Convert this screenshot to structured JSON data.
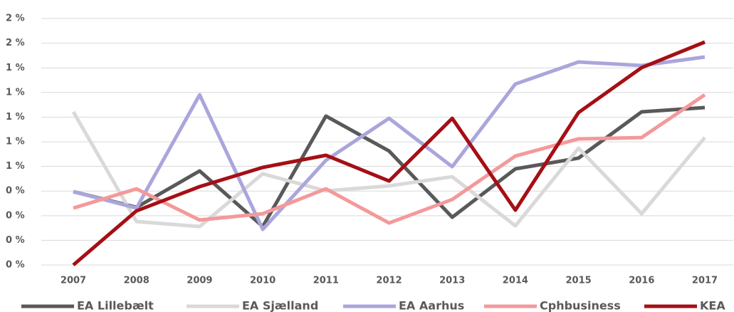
{
  "chart_data": {
    "type": "line",
    "categories": [
      "2007",
      "2008",
      "2009",
      "2010",
      "2011",
      "2012",
      "2013",
      "2014",
      "2015",
      "2016",
      "2017"
    ],
    "ylim": [
      0,
      1.667
    ],
    "yticks": [
      {
        "value": 0,
        "label": "0 %"
      },
      {
        "value": 0.167,
        "label": "0 %"
      },
      {
        "value": 0.333,
        "label": "0 %"
      },
      {
        "value": 0.5,
        "label": "0 %"
      },
      {
        "value": 0.667,
        "label": "1 %"
      },
      {
        "value": 0.833,
        "label": "1 %"
      },
      {
        "value": 1,
        "label": "1 %"
      },
      {
        "value": 1.167,
        "label": "1 %"
      },
      {
        "value": 1.333,
        "label": "1 %"
      },
      {
        "value": 1.5,
        "label": "2 %"
      },
      {
        "value": 1.667,
        "label": "2 %"
      }
    ],
    "grid": true,
    "series": [
      {
        "name": "EA Lillebælt",
        "color": "#595959",
        "values": [
          0.496,
          0.39,
          0.636,
          0.26,
          1.007,
          0.771,
          0.323,
          0.65,
          0.723,
          1.036,
          1.065
        ]
      },
      {
        "name": "EA Sjælland",
        "color": "#d9d9d9",
        "values": [
          1.036,
          0.294,
          0.26,
          0.617,
          0.501,
          0.535,
          0.597,
          0.265,
          0.79,
          0.347,
          0.862
        ]
      },
      {
        "name": "EA Aarhus",
        "color": "#aaa6dc",
        "values": [
          0.496,
          0.385,
          1.151,
          0.241,
          0.708,
          0.992,
          0.665,
          1.224,
          1.373,
          1.349,
          1.407
        ]
      },
      {
        "name": "Cphbusiness",
        "color": "#f4999a",
        "values": [
          0.385,
          0.515,
          0.304,
          0.347,
          0.515,
          0.284,
          0.443,
          0.737,
          0.853,
          0.862,
          1.151
        ]
      },
      {
        "name": "KEA",
        "color": "#a50f15",
        "values": [
          0,
          0.366,
          0.53,
          0.66,
          0.742,
          0.568,
          0.992,
          0.371,
          1.031,
          1.335,
          1.508
        ]
      }
    ]
  }
}
